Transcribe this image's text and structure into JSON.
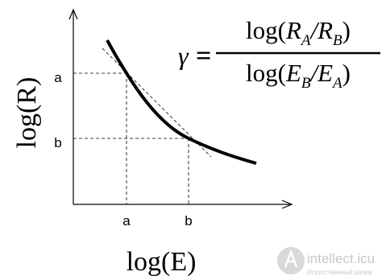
{
  "diagram": {
    "y_axis_label": "log(R)",
    "x_axis_label": "log(E)",
    "y_ticks": [
      "a",
      "b"
    ],
    "x_ticks": [
      "a",
      "b"
    ],
    "formula": {
      "lhs": "γ",
      "equals": "=",
      "numerator": {
        "open": "log(",
        "a": "R",
        "a_sub": "A",
        "sep": "/",
        "b": "R",
        "b_sub": "B",
        "close": ")"
      },
      "denominator": {
        "open": "log(",
        "a": "E",
        "a_sub": "B",
        "sep": "/",
        "b": "E",
        "b_sub": "A",
        "close": ")"
      }
    },
    "watermark": {
      "site": "intellect.icu",
      "tagline": "Искусственный разум"
    }
  }
}
